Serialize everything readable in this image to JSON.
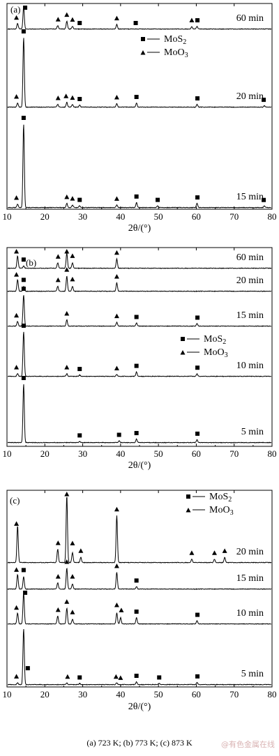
{
  "caption": "(a) 723 K; (b) 773 K; (c) 873 K",
  "watermark": "@有色金属在线",
  "colors": {
    "line": "#000000",
    "background": "#ffffff"
  },
  "chart_data": [
    {
      "type": "line",
      "panel_label": "(a)",
      "xlabel": "2θ/(°)",
      "xlim": [
        10,
        80
      ],
      "xticks": [
        10,
        20,
        30,
        40,
        50,
        60,
        70,
        80
      ],
      "grid": false,
      "legend": {
        "placement": "top-right",
        "entries": [
          {
            "marker": "square",
            "label": "MoS2"
          },
          {
            "marker": "triangle",
            "label": "MoO3"
          }
        ]
      },
      "series": [
        {
          "label": "60 min",
          "peaks": [
            [
              12.8,
              0.25
            ],
            [
              14.4,
              1.0
            ],
            [
              23.4,
              0.15
            ],
            [
              25.8,
              0.35
            ],
            [
              27.3,
              0.12
            ],
            [
              39.0,
              0.2
            ],
            [
              58.8,
              0.1
            ],
            [
              60.2,
              0.12
            ]
          ],
          "markers": [
            {
              "x": 14.8,
              "type": "square"
            },
            {
              "x": 12.5,
              "type": "triangle"
            },
            {
              "x": 23.5,
              "type": "triangle"
            },
            {
              "x": 25.8,
              "type": "triangle"
            },
            {
              "x": 27.3,
              "type": "triangle"
            },
            {
              "x": 29.2,
              "type": "square"
            },
            {
              "x": 39.0,
              "type": "triangle"
            },
            {
              "x": 44.0,
              "type": "square"
            },
            {
              "x": 58.8,
              "type": "triangle"
            },
            {
              "x": 60.3,
              "type": "square"
            }
          ]
        },
        {
          "label": "20 min",
          "peaks": [
            [
              12.8,
              0.06
            ],
            [
              14.4,
              1.0
            ],
            [
              23.4,
              0.04
            ],
            [
              25.8,
              0.07
            ],
            [
              27.3,
              0.04
            ],
            [
              29.2,
              0.03
            ],
            [
              39.0,
              0.05
            ],
            [
              44.2,
              0.06
            ],
            [
              60.2,
              0.04
            ],
            [
              78.0,
              0.02
            ]
          ],
          "markers": [
            {
              "x": 14.4,
              "type": "square"
            },
            {
              "x": 12.5,
              "type": "triangle"
            },
            {
              "x": 23.5,
              "type": "triangle"
            },
            {
              "x": 25.6,
              "type": "triangle"
            },
            {
              "x": 27.3,
              "type": "triangle"
            },
            {
              "x": 29.2,
              "type": "square"
            },
            {
              "x": 39.0,
              "type": "triangle"
            },
            {
              "x": 44.2,
              "type": "square"
            },
            {
              "x": 60.3,
              "type": "square"
            },
            {
              "x": 77.8,
              "type": "square"
            }
          ]
        },
        {
          "label": "15 min",
          "peaks": [
            [
              12.8,
              0.04
            ],
            [
              14.4,
              1.0
            ],
            [
              25.8,
              0.05
            ],
            [
              27.3,
              0.03
            ],
            [
              29.2,
              0.02
            ],
            [
              39.0,
              0.03
            ],
            [
              44.2,
              0.06
            ],
            [
              49.8,
              0.02
            ],
            [
              60.2,
              0.05
            ],
            [
              78.0,
              0.02
            ]
          ],
          "markers": [
            {
              "x": 14.4,
              "type": "square"
            },
            {
              "x": 12.5,
              "type": "triangle"
            },
            {
              "x": 25.8,
              "type": "triangle"
            },
            {
              "x": 27.3,
              "type": "triangle"
            },
            {
              "x": 29.2,
              "type": "square"
            },
            {
              "x": 39.0,
              "type": "triangle"
            },
            {
              "x": 44.2,
              "type": "square"
            },
            {
              "x": 49.8,
              "type": "square"
            },
            {
              "x": 60.3,
              "type": "square"
            },
            {
              "x": 77.8,
              "type": "square"
            }
          ]
        }
      ]
    },
    {
      "type": "line",
      "panel_label": "(b)",
      "xlabel": "2θ/(°)",
      "xlim": [
        10,
        80
      ],
      "xticks": [
        10,
        20,
        30,
        40,
        50,
        60,
        70,
        80
      ],
      "grid": false,
      "legend": {
        "placement": "right",
        "entries": [
          {
            "marker": "square",
            "label": "MoS2"
          },
          {
            "marker": "triangle",
            "label": "MoO3"
          }
        ]
      },
      "series": [
        {
          "label": "60 min",
          "peaks": [
            [
              12.8,
              0.8
            ],
            [
              14.4,
              0.15
            ],
            [
              23.4,
              0.35
            ],
            [
              25.8,
              1.0
            ],
            [
              27.3,
              0.35
            ],
            [
              39.0,
              0.6
            ]
          ],
          "markers": [
            {
              "x": 12.5,
              "type": "triangle"
            },
            {
              "x": 14.4,
              "type": "square"
            },
            {
              "x": 23.5,
              "type": "triangle"
            },
            {
              "x": 25.8,
              "type": "triangle"
            },
            {
              "x": 27.3,
              "type": "triangle"
            },
            {
              "x": 39.0,
              "type": "triangle"
            }
          ]
        },
        {
          "label": "20 min",
          "peaks": [
            [
              12.8,
              0.7
            ],
            [
              14.4,
              0.3
            ],
            [
              23.4,
              0.3
            ],
            [
              25.8,
              0.9
            ],
            [
              27.3,
              0.3
            ],
            [
              39.0,
              0.5
            ]
          ],
          "markers": [
            {
              "x": 12.5,
              "type": "triangle"
            },
            {
              "x": 14.4,
              "type": "square"
            },
            {
              "x": 23.5,
              "type": "triangle"
            },
            {
              "x": 25.8,
              "type": "triangle"
            },
            {
              "x": 27.3,
              "type": "triangle"
            },
            {
              "x": 39.0,
              "type": "triangle"
            }
          ]
        },
        {
          "label": "15 min",
          "peaks": [
            [
              12.8,
              0.15
            ],
            [
              14.4,
              1.0
            ],
            [
              25.8,
              0.2
            ],
            [
              39.0,
              0.12
            ],
            [
              44.2,
              0.1
            ],
            [
              60.2,
              0.08
            ]
          ],
          "markers": [
            {
              "x": 14.4,
              "type": "square"
            },
            {
              "x": 12.5,
              "type": "triangle"
            },
            {
              "x": 25.8,
              "type": "triangle"
            },
            {
              "x": 39.0,
              "type": "triangle"
            },
            {
              "x": 44.2,
              "type": "square"
            },
            {
              "x": 60.3,
              "type": "square"
            }
          ]
        },
        {
          "label": "10 min",
          "peaks": [
            [
              12.8,
              0.06
            ],
            [
              14.4,
              1.0
            ],
            [
              25.8,
              0.06
            ],
            [
              29.2,
              0.03
            ],
            [
              39.0,
              0.04
            ],
            [
              44.2,
              0.1
            ],
            [
              60.2,
              0.06
            ]
          ],
          "markers": [
            {
              "x": 14.4,
              "type": "square"
            },
            {
              "x": 12.5,
              "type": "triangle"
            },
            {
              "x": 25.8,
              "type": "triangle"
            },
            {
              "x": 29.2,
              "type": "square"
            },
            {
              "x": 39.0,
              "type": "triangle"
            },
            {
              "x": 44.2,
              "type": "square"
            },
            {
              "x": 60.3,
              "type": "square"
            }
          ]
        },
        {
          "label": "5 min",
          "peaks": [
            [
              14.4,
              1.0
            ],
            [
              29.2,
              0.02
            ],
            [
              39.6,
              0.03
            ],
            [
              44.2,
              0.06
            ],
            [
              60.2,
              0.05
            ]
          ],
          "markers": [
            {
              "x": 14.4,
              "type": "square"
            },
            {
              "x": 29.2,
              "type": "square"
            },
            {
              "x": 39.6,
              "type": "square"
            },
            {
              "x": 44.2,
              "type": "square"
            },
            {
              "x": 60.3,
              "type": "square"
            }
          ]
        }
      ]
    },
    {
      "type": "line",
      "panel_label": "(c)",
      "xlabel": "2θ/(°)",
      "xlim": [
        10,
        80
      ],
      "xticks": [
        10,
        20,
        30,
        40,
        50,
        60,
        70,
        80
      ],
      "grid": false,
      "legend": {
        "placement": "top-right",
        "entries": [
          {
            "marker": "square",
            "label": "MoS2"
          },
          {
            "marker": "triangle",
            "label": "MoO3"
          }
        ]
      },
      "series": [
        {
          "label": "20 min",
          "peaks": [
            [
              12.8,
              0.55
            ],
            [
              23.4,
              0.2
            ],
            [
              25.8,
              1.0
            ],
            [
              27.3,
              0.15
            ],
            [
              29.5,
              0.08
            ],
            [
              39.0,
              0.7
            ],
            [
              58.8,
              0.05
            ],
            [
              64.8,
              0.05
            ],
            [
              67.5,
              0.08
            ]
          ],
          "markers": [
            {
              "x": 12.5,
              "type": "triangle"
            },
            {
              "x": 23.5,
              "type": "triangle"
            },
            {
              "x": 25.8,
              "type": "triangle"
            },
            {
              "x": 27.3,
              "type": "triangle"
            },
            {
              "x": 29.5,
              "type": "triangle"
            },
            {
              "x": 39.0,
              "type": "triangle"
            },
            {
              "x": 58.8,
              "type": "triangle"
            },
            {
              "x": 64.8,
              "type": "triangle"
            },
            {
              "x": 67.5,
              "type": "triangle"
            }
          ]
        },
        {
          "label": "15 min",
          "peaks": [
            [
              12.8,
              0.7
            ],
            [
              14.4,
              0.6
            ],
            [
              23.4,
              0.3
            ],
            [
              25.8,
              1.0
            ],
            [
              27.3,
              0.25
            ],
            [
              39.0,
              0.8
            ],
            [
              44.2,
              0.12
            ]
          ],
          "markers": [
            {
              "x": 12.5,
              "type": "triangle"
            },
            {
              "x": 14.4,
              "type": "square"
            },
            {
              "x": 23.5,
              "type": "triangle"
            },
            {
              "x": 25.8,
              "type": "triangle"
            },
            {
              "x": 27.3,
              "type": "triangle"
            },
            {
              "x": 39.0,
              "type": "triangle"
            },
            {
              "x": 44.2,
              "type": "square"
            }
          ]
        },
        {
          "label": "10 min",
          "peaks": [
            [
              12.8,
              0.35
            ],
            [
              14.4,
              1.0
            ],
            [
              23.4,
              0.25
            ],
            [
              25.8,
              0.5
            ],
            [
              27.3,
              0.15
            ],
            [
              39.0,
              0.35
            ],
            [
              40.0,
              0.2
            ],
            [
              44.2,
              0.2
            ],
            [
              60.2,
              0.1
            ]
          ],
          "markers": [
            {
              "x": 12.5,
              "type": "triangle"
            },
            {
              "x": 14.8,
              "type": "square"
            },
            {
              "x": 23.5,
              "type": "triangle"
            },
            {
              "x": 25.8,
              "type": "triangle"
            },
            {
              "x": 27.3,
              "type": "triangle"
            },
            {
              "x": 39.0,
              "type": "triangle"
            },
            {
              "x": 40.2,
              "type": "triangle"
            },
            {
              "x": 44.2,
              "type": "square"
            },
            {
              "x": 60.3,
              "type": "square"
            }
          ]
        },
        {
          "label": "5 min",
          "peaks": [
            [
              12.8,
              0.03
            ],
            [
              14.4,
              1.0
            ],
            [
              25.8,
              0.03
            ],
            [
              29.2,
              0.02
            ],
            [
              39.0,
              0.03
            ],
            [
              44.2,
              0.05
            ],
            [
              50.2,
              0.02
            ],
            [
              60.2,
              0.04
            ]
          ],
          "markers": [
            {
              "x": 15.5,
              "type": "square"
            },
            {
              "x": 12.5,
              "type": "triangle"
            },
            {
              "x": 26.0,
              "type": "triangle"
            },
            {
              "x": 29.2,
              "type": "square"
            },
            {
              "x": 38.8,
              "type": "triangle"
            },
            {
              "x": 40.0,
              "type": "triangle"
            },
            {
              "x": 44.2,
              "type": "square"
            },
            {
              "x": 50.2,
              "type": "square"
            },
            {
              "x": 60.3,
              "type": "square"
            }
          ]
        }
      ]
    }
  ]
}
